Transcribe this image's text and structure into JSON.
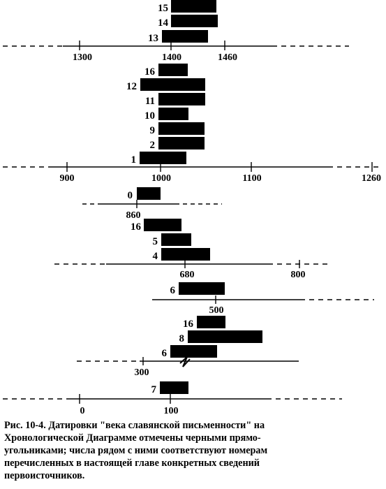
{
  "caption": {
    "lines": [
      "Рис. 10-4. Датировки \"века славянской письменности\" на",
      "Хронологической Диаграмме отмечены черными прямо-",
      "угольниками; числа рядом с ними соответствуют  номерам",
      "перечисленных в настоящей главе конкретных сведений",
      "первоисточников."
    ]
  },
  "bars": [
    {
      "label": "15"
    },
    {
      "label": "14"
    },
    {
      "label": "13"
    },
    {
      "label": "16"
    },
    {
      "label": "12"
    },
    {
      "label": "11"
    },
    {
      "label": "10"
    },
    {
      "label": "9"
    },
    {
      "label": "2"
    },
    {
      "label": "1"
    },
    {
      "label": "0"
    },
    {
      "label": "16"
    },
    {
      "label": "5"
    },
    {
      "label": "4"
    },
    {
      "label": "6"
    },
    {
      "label": "16"
    },
    {
      "label": "8"
    },
    {
      "label": "6"
    },
    {
      "label": "7"
    }
  ],
  "ticks": [
    {
      "label": "1300"
    },
    {
      "label": "1400"
    },
    {
      "label": "1460"
    },
    {
      "label": "900"
    },
    {
      "label": "1000"
    },
    {
      "label": "1100"
    },
    {
      "label": "1260"
    },
    {
      "label": "860"
    },
    {
      "label": "680"
    },
    {
      "label": "800"
    },
    {
      "label": "500"
    },
    {
      "label": "300"
    },
    {
      "label": "0"
    },
    {
      "label": "100"
    }
  ],
  "colors": {
    "ink": "#000000",
    "paper": "#ffffff"
  }
}
